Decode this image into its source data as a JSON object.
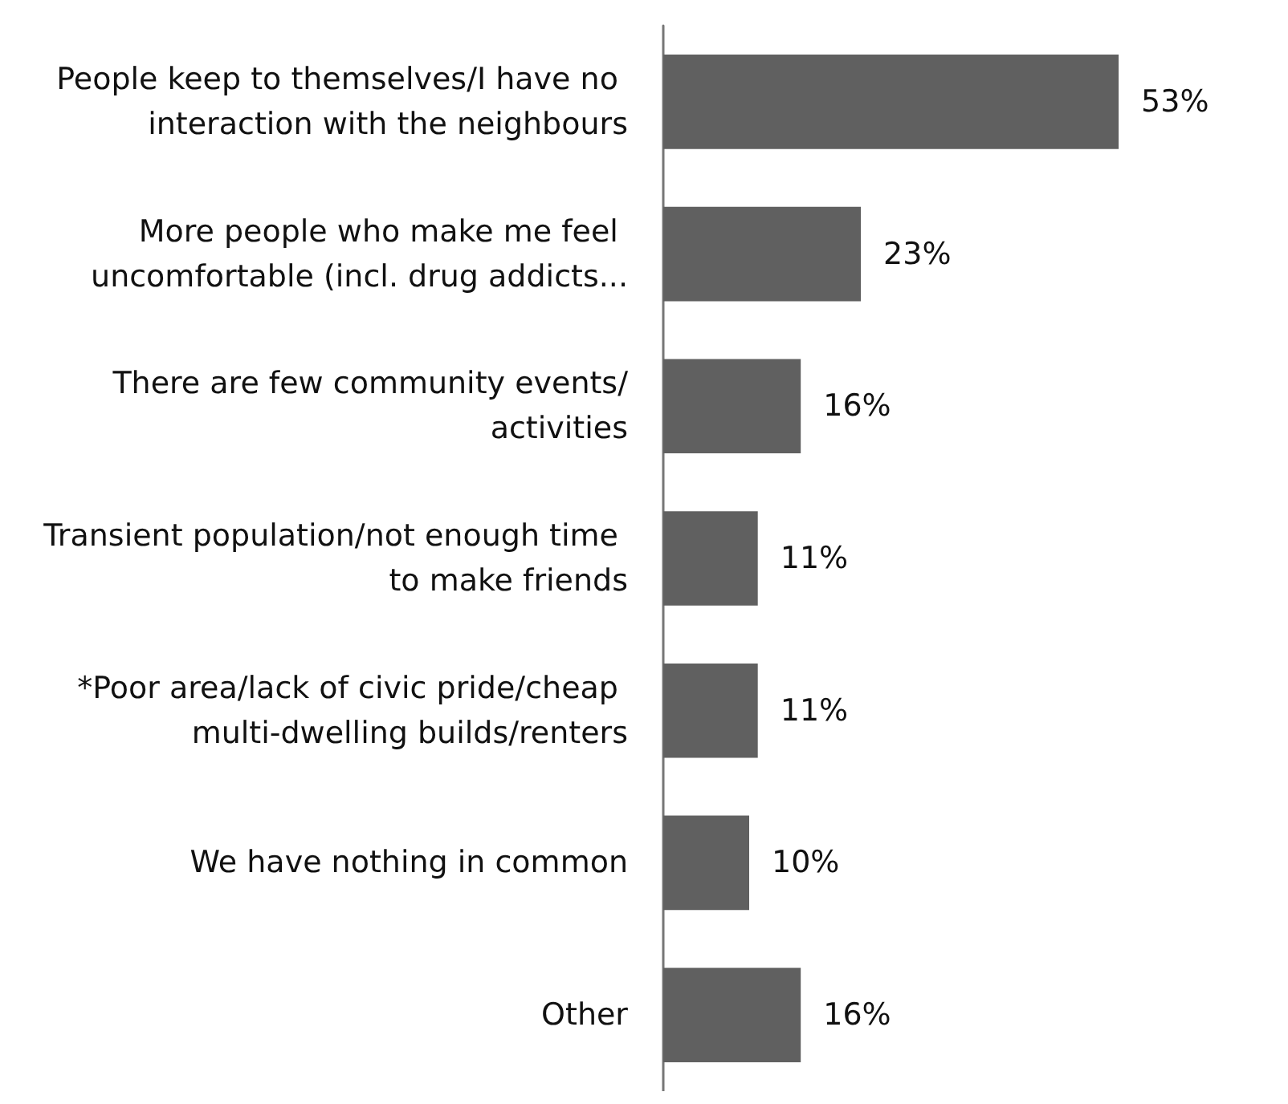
{
  "chart_data": {
    "type": "bar",
    "orientation": "horizontal",
    "categories": [
      "People keep to themselves/I have no interaction with the neighbours",
      "More people who make me feel uncomfortable (incl. drug addicts...",
      "There are few community events/activities",
      "Transient population/not enough time to make friends",
      "*Poor area/lack of civic pride/cheap multi-dwelling builds/renters",
      "We have nothing in common",
      "Other"
    ],
    "values": [
      53,
      23,
      16,
      11,
      11,
      10,
      16
    ],
    "value_labels": [
      "53%",
      "23%",
      "16%",
      "11%",
      "11%",
      "10%",
      "16%"
    ],
    "color": "#606060",
    "tick_labels": "y"
  }
}
